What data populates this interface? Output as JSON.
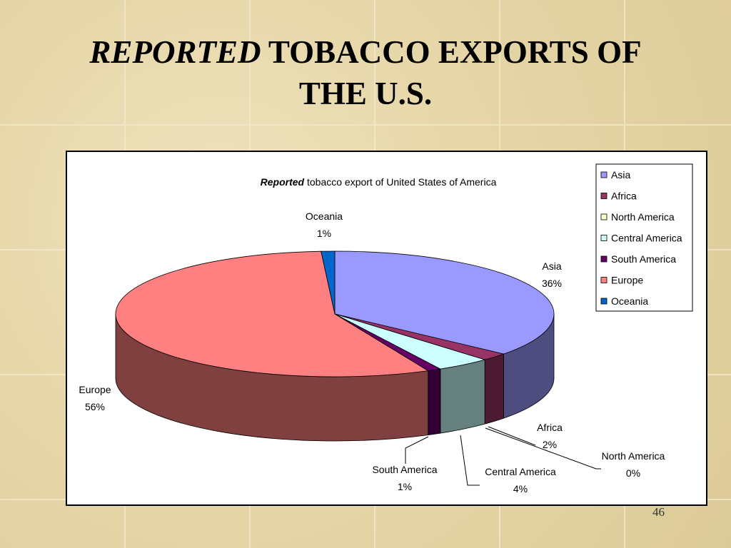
{
  "slide": {
    "title_emphasis": "REPORTED",
    "title_rest": "TOBACCO EXPORTS OF THE U.S.",
    "page_number": "46"
  },
  "chart_data": {
    "type": "pie3d",
    "title_emphasis": "Reported",
    "title": "tobacco export of United States of America",
    "categories": [
      "Asia",
      "Africa",
      "North America",
      "Central America",
      "South America",
      "Europe",
      "Oceania"
    ],
    "values": [
      36,
      2,
      0,
      4,
      1,
      56,
      1
    ],
    "value_labels": [
      "36%",
      "2%",
      "0%",
      "4%",
      "1%",
      "56%",
      "1%"
    ],
    "colors": [
      "#9999ff",
      "#993366",
      "#ffffcc",
      "#ccffff",
      "#660066",
      "#ff8080",
      "#0066cc"
    ],
    "legend": "right"
  }
}
